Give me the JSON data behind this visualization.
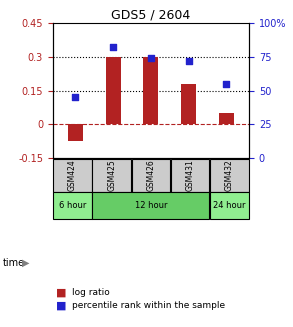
{
  "title": "GDS5 / 2604",
  "samples": [
    "GSM424",
    "GSM425",
    "GSM426",
    "GSM431",
    "GSM432"
  ],
  "log_ratio": [
    -0.075,
    0.3,
    0.3,
    0.18,
    0.05
  ],
  "percentile_rank": [
    45,
    82,
    74,
    72,
    55
  ],
  "left_ylim": [
    -0.15,
    0.45
  ],
  "right_ylim": [
    0,
    100
  ],
  "left_yticks": [
    -0.15,
    0,
    0.15,
    0.3,
    0.45
  ],
  "right_yticks": [
    0,
    25,
    50,
    75,
    100
  ],
  "hlines_dotted": [
    0.15,
    0.3
  ],
  "hline_dash": 0.0,
  "bar_color": "#b22222",
  "scatter_color": "#2222cc",
  "time_groups": [
    {
      "label": "6 hour",
      "samples": [
        "GSM424"
      ],
      "color": "#90ee90"
    },
    {
      "label": "12 hour",
      "samples": [
        "GSM425",
        "GSM426",
        "GSM431"
      ],
      "color": "#66cc66"
    },
    {
      "label": "24 hour",
      "samples": [
        "GSM432"
      ],
      "color": "#90ee90"
    }
  ],
  "time_label": "time",
  "legend_bar_label": "log ratio",
  "legend_scatter_label": "percentile rank within the sample",
  "sample_box_color": "#cccccc",
  "bar_width": 0.4
}
